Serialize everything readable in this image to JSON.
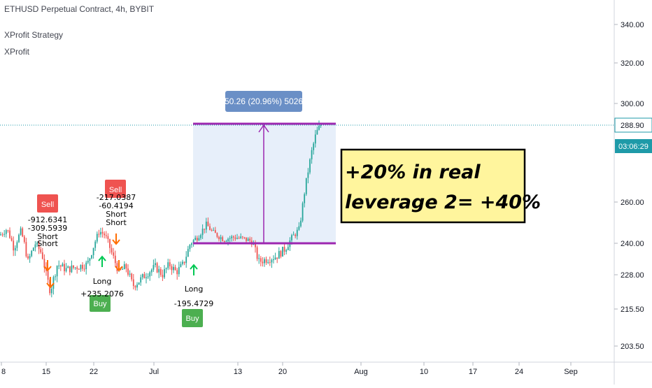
{
  "chart_data": {
    "type": "candlestick",
    "legend": {
      "symbol": "ETHUSD Perpetual Contract, 4h, BYBIT",
      "indicator_1": "XProfit Strategy",
      "indicator_2": "XProfit"
    },
    "y_axis": {
      "ticks": [
        "340.00",
        "320.00",
        "300.00",
        "260.00",
        "240.00",
        "228.00",
        "215.50",
        "203.50"
      ],
      "tick_values": [
        340,
        320,
        300,
        260,
        240,
        228,
        215.5,
        203.5
      ],
      "last_price": "288.90",
      "countdown": "03:06:29"
    },
    "x_axis": {
      "ticks": [
        "8",
        "15",
        "22",
        "Jul",
        "13",
        "20",
        "Aug",
        "10",
        "17",
        "24",
        "Sep"
      ]
    },
    "measure": {
      "label": "50.26 (20.96%) 5026",
      "from_price": 240,
      "to_price": 290
    },
    "annotation": {
      "line1": "+20% in real",
      "line2": "leverage 2= +40%"
    },
    "signals": [
      {
        "kind": "sell",
        "badge": "Sell",
        "labels": [
          "-912.6341",
          "-309.5939",
          "Short",
          "Short"
        ]
      },
      {
        "kind": "sell",
        "badge": "Sell",
        "labels": [
          "-217.0387",
          "-60.4194",
          "Short",
          "Short"
        ]
      },
      {
        "kind": "buy",
        "badge": "Buy",
        "labels": [
          "Long",
          "+235.2076"
        ]
      },
      {
        "kind": "buy",
        "badge": "Buy",
        "labels": [
          "Long",
          "-195.4729"
        ]
      }
    ],
    "colors": {
      "up": "#26a69a",
      "down": "#ef5350",
      "measure_line": "#9c27b0",
      "measure_fill": "#e3ecf9",
      "measure_label_bg": "#6a8fc6",
      "price_line": "#1e9aa8",
      "annotation_bg": "#fff59d",
      "buy_badge": "#4caf50",
      "sell_badge": "#ef5350"
    }
  }
}
